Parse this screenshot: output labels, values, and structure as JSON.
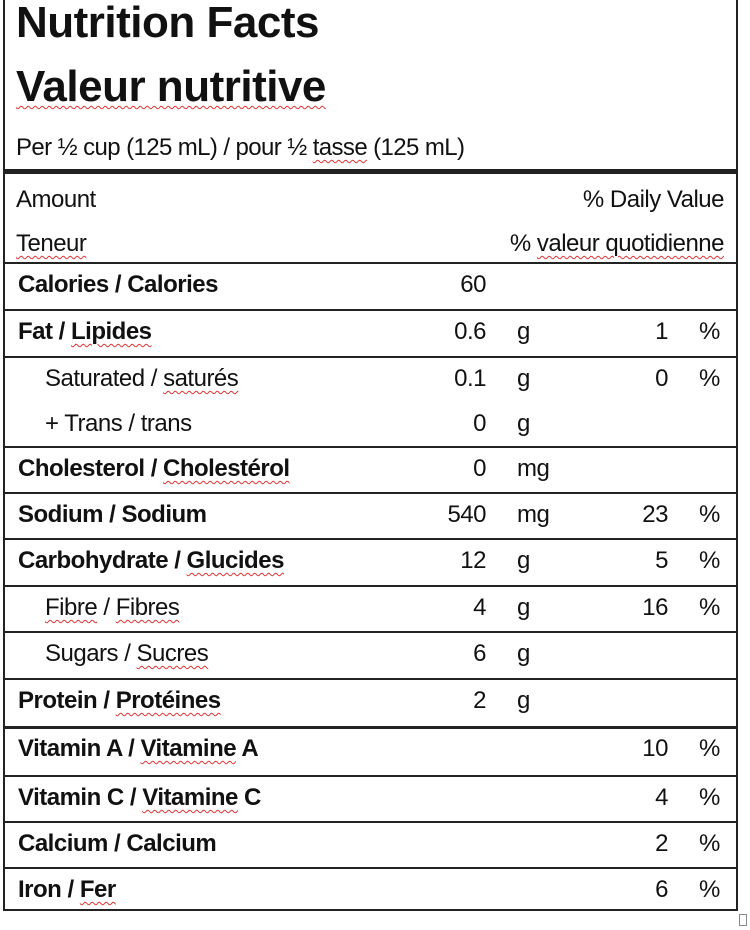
{
  "title_en": "Nutrition Facts",
  "title_fr": "Valeur nutritive",
  "serving": {
    "a": "Per ½ cup (125 mL)  / pour ½ ",
    "b": "tasse",
    "c": " (125 mL)"
  },
  "header": {
    "amount": "Amount",
    "teneur": "Teneur",
    "daily_value": "% Daily Value",
    "pct_prefix": "% ",
    "valeur_quotidienne": "valeur quotidienne"
  },
  "spellcheck_color": "#d33",
  "rows": [
    {
      "parts": [
        {
          "t": "Calories / Calories",
          "u": false
        }
      ],
      "value": "60",
      "unit": "",
      "dv": "",
      "pct": "",
      "bold": true,
      "indent": false
    },
    {
      "parts": [
        {
          "t": "Fat / ",
          "u": false
        },
        {
          "t": "Lipides",
          "u": true
        }
      ],
      "value": "0.6",
      "unit": "g",
      "dv": "1",
      "pct": "%",
      "bold": true,
      "indent": false
    },
    {
      "parts": [
        {
          "t": "Saturated / ",
          "u": false
        },
        {
          "t": "saturés",
          "u": true
        }
      ],
      "value": "0.1",
      "unit": "g",
      "dv": "0",
      "pct": "%",
      "bold": false,
      "indent": true
    },
    {
      "parts": [
        {
          "t": "+ Trans  / trans",
          "u": false
        }
      ],
      "value": "0",
      "unit": "g",
      "dv": "",
      "pct": "",
      "bold": false,
      "indent": true
    },
    {
      "parts": [
        {
          "t": "Cholesterol  / ",
          "u": false
        },
        {
          "t": "Cholestérol",
          "u": true
        }
      ],
      "value": "0",
      "unit": "mg",
      "dv": "",
      "pct": "",
      "bold": true,
      "indent": false
    },
    {
      "parts": [
        {
          "t": "Sodium  / Sodium",
          "u": false
        }
      ],
      "value": "540",
      "unit": "mg",
      "dv": "23",
      "pct": "%",
      "bold": true,
      "indent": false
    },
    {
      "parts": [
        {
          "t": "Carbohydrate  / ",
          "u": false
        },
        {
          "t": "Glucides",
          "u": true
        }
      ],
      "value": "12",
      "unit": "g",
      "dv": "5",
      "pct": "%",
      "bold": true,
      "indent": false
    },
    {
      "parts": [
        {
          "t": "Fibre",
          "u": true
        },
        {
          "t": " / ",
          "u": false
        },
        {
          "t": "Fibres",
          "u": true
        }
      ],
      "value": "4",
      "unit": "g",
      "dv": "16",
      "pct": "%",
      "bold": false,
      "indent": true
    },
    {
      "parts": [
        {
          "t": "Sugars / ",
          "u": false
        },
        {
          "t": "Sucres",
          "u": true
        }
      ],
      "value": "6",
      "unit": "g",
      "dv": "",
      "pct": "",
      "bold": false,
      "indent": true
    },
    {
      "parts": [
        {
          "t": "Protein / ",
          "u": false
        },
        {
          "t": "Protéines",
          "u": true
        }
      ],
      "value": "2",
      "unit": "g",
      "dv": "",
      "pct": "",
      "bold": true,
      "indent": false
    },
    {
      "parts": [
        {
          "t": "Vitamin A / ",
          "u": false
        },
        {
          "t": "Vitamine",
          "u": true
        },
        {
          "t": " A",
          "u": false
        }
      ],
      "value": "",
      "unit": "",
      "dv": "10",
      "pct": "%",
      "bold": true,
      "indent": false
    },
    {
      "parts": [
        {
          "t": "Vitamin C / ",
          "u": false
        },
        {
          "t": "Vitamine",
          "u": true
        },
        {
          "t": " C",
          "u": false
        }
      ],
      "value": "",
      "unit": "",
      "dv": "4",
      "pct": "%",
      "bold": true,
      "indent": false
    },
    {
      "parts": [
        {
          "t": "Calcium / Calcium",
          "u": false
        }
      ],
      "value": "",
      "unit": "",
      "dv": "2",
      "pct": "%",
      "bold": true,
      "indent": false
    },
    {
      "parts": [
        {
          "t": "Iron / ",
          "u": false
        },
        {
          "t": "Fer",
          "u": true
        }
      ],
      "value": "",
      "unit": "",
      "dv": "6",
      "pct": "%",
      "bold": true,
      "indent": false
    }
  ]
}
